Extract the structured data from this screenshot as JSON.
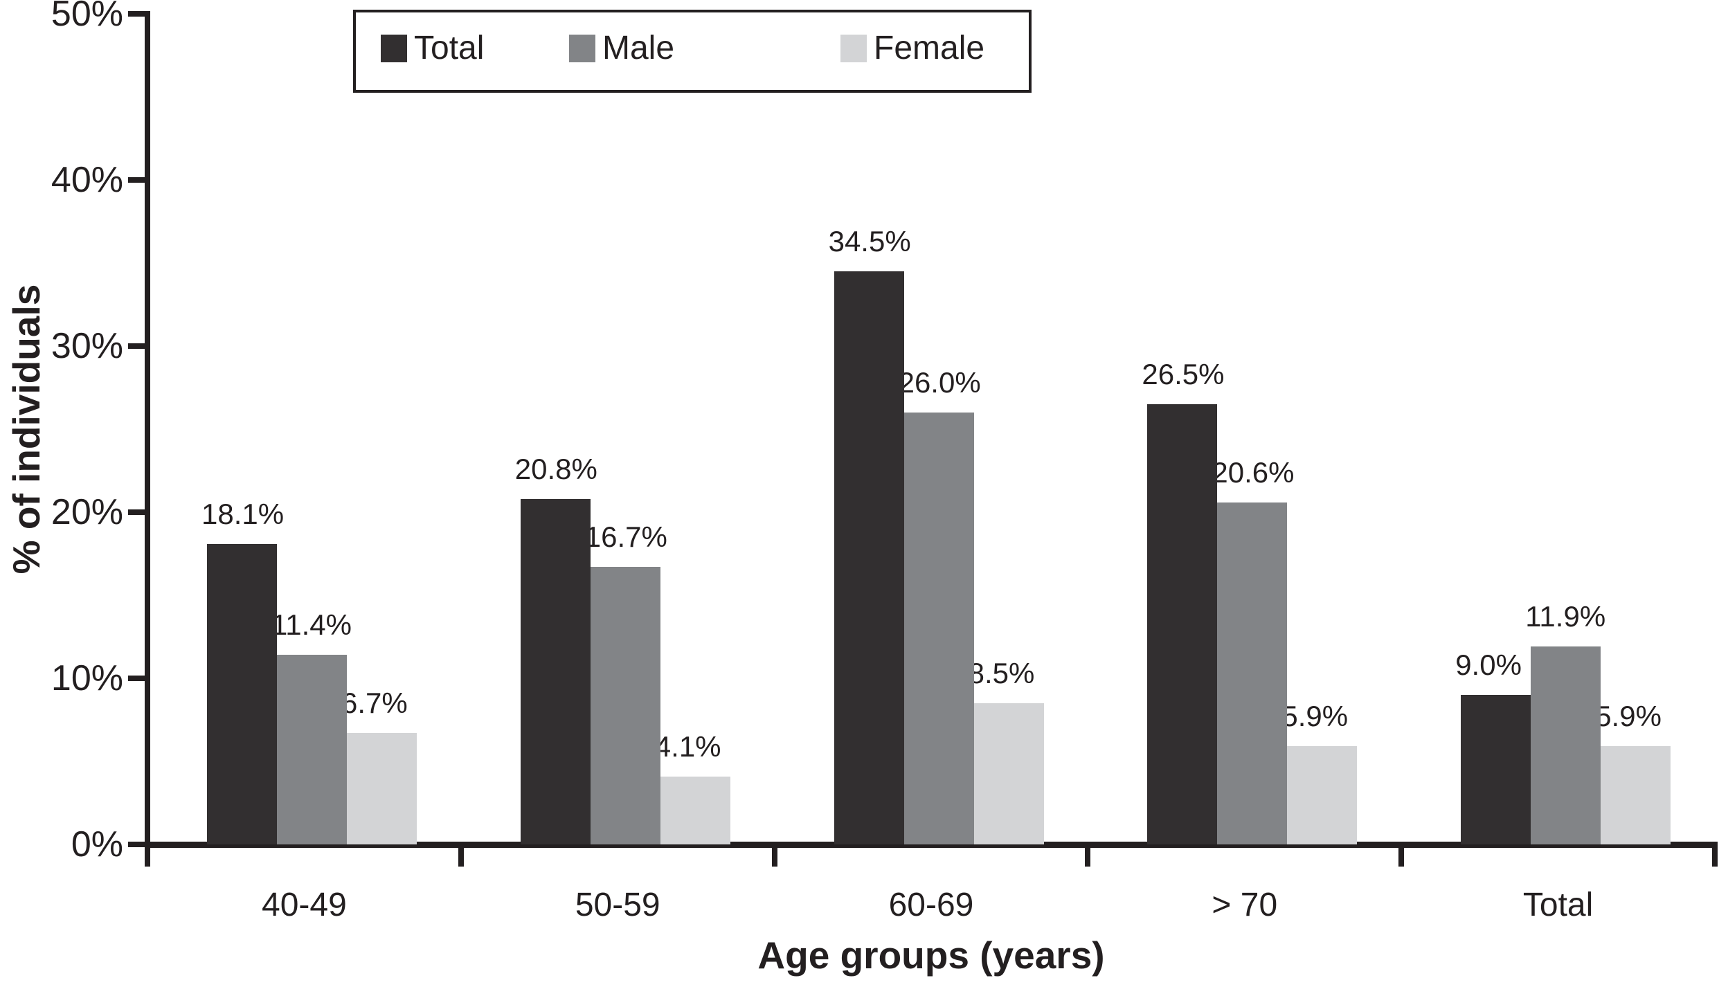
{
  "chart_data": {
    "type": "bar",
    "title": "",
    "categories": [
      "40-49",
      "50-59",
      "60-69",
      "> 70",
      "Total"
    ],
    "series": [
      {
        "name": "Total",
        "color": "#322f30",
        "values": [
          18.1,
          20.8,
          34.5,
          26.5,
          9.0
        ]
      },
      {
        "name": "Male",
        "color": "#828487",
        "values": [
          11.4,
          16.7,
          26.0,
          20.6,
          11.9
        ]
      },
      {
        "name": "Female",
        "color": "#d3d4d6",
        "values": [
          6.7,
          4.1,
          8.5,
          5.9,
          5.9
        ]
      }
    ],
    "value_labels": [
      [
        "18.1%",
        "11.4%",
        "6.7%"
      ],
      [
        "20.8%",
        "16.7%",
        "4.1%"
      ],
      [
        "34.5%",
        "26.0%",
        "8.5%"
      ],
      [
        "26.5%",
        "20.6%",
        "5.9%"
      ],
      [
        "9.0%",
        "11.9%",
        "5.9%"
      ]
    ],
    "xlabel": "Age groups (years)",
    "ylabel": "% of individuals",
    "ylim": [
      0,
      50
    ],
    "yticks": [
      0,
      10,
      20,
      30,
      40,
      50
    ],
    "ytick_labels": [
      "0%",
      "10%",
      "20%",
      "30%",
      "40%",
      "50%"
    ],
    "legend_position": "top",
    "grid": false
  },
  "legend": {
    "items": [
      {
        "label": "Total",
        "color": "#322f30"
      },
      {
        "label": "Male",
        "color": "#828487"
      },
      {
        "label": "Female",
        "color": "#d3d4d6"
      }
    ]
  },
  "colors": {
    "axis": "#231f20",
    "text": "#231f20",
    "background": "#ffffff"
  }
}
